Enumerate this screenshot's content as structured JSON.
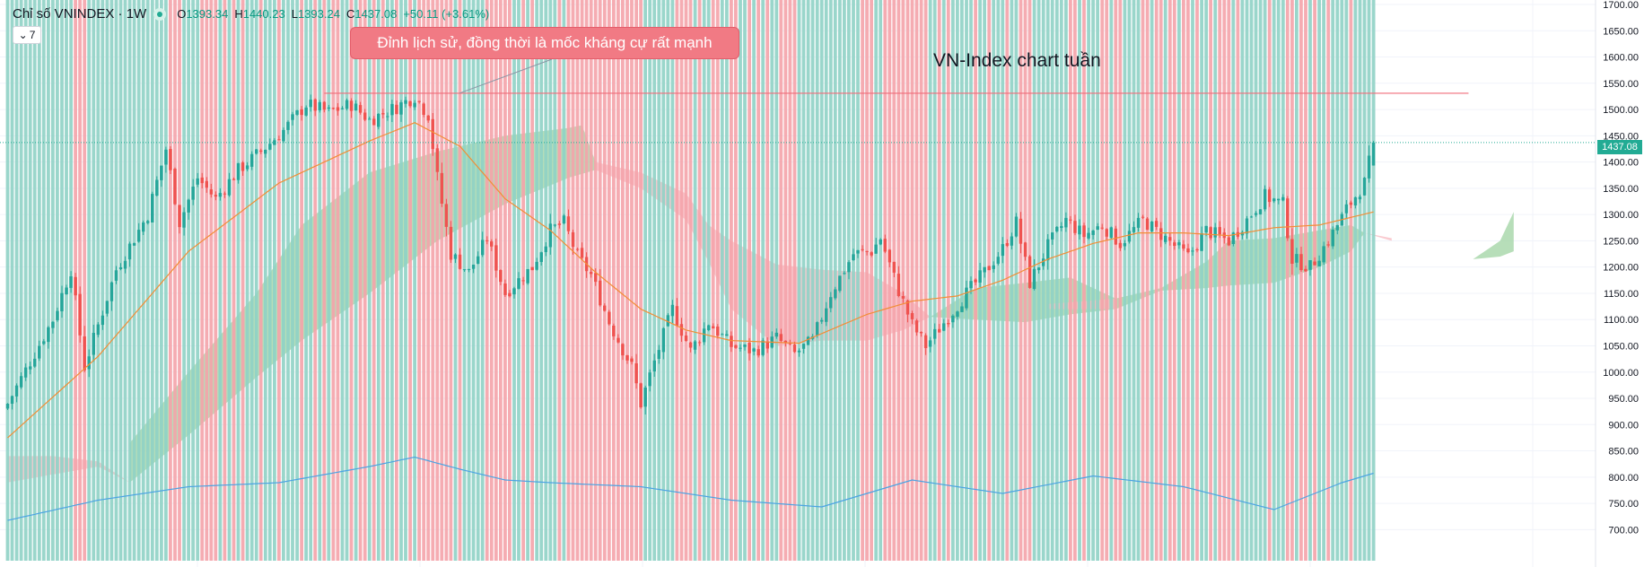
{
  "legend": {
    "symbol": "Chỉ số VNINDEX · 1W",
    "open_key": "O",
    "open": "1393.34",
    "high_key": "H",
    "high": "1440.23",
    "low_key": "L",
    "low": "1393.24",
    "close_key": "C",
    "close": "1437.08",
    "change": "+50.11 (+3.61%)"
  },
  "indicator_toggle": {
    "icon": "chevron-down-icon",
    "count": "7"
  },
  "annotation": {
    "callout_text": "Đỉnh lịch sử, đồng thời là mốc kháng cự rất mạnh",
    "title_text": "VN-Index chart tuần",
    "resistance_level": 1531
  },
  "last_price_tag": "1437.08",
  "colors": {
    "up": "#26a69a",
    "down": "#ef5350",
    "up_volume": "#8fd1c5",
    "down_volume": "#f4a3aa",
    "ma": "#f28d35",
    "volume_ma": "#4ba3e3",
    "cloud_bull": "#a5d6a7",
    "cloud_bear": "#f9bec4",
    "resistance": "#f06c7a",
    "last_price_line": "#22ab94",
    "callout": "#f17a84"
  },
  "chart_data": {
    "type": "candlestick",
    "timeframe": "1W",
    "y_axis": {
      "min": 675,
      "max": 1700,
      "ticks": [
        {
          "value": 1700,
          "label": "1700.00"
        },
        {
          "value": 1650,
          "label": "1650.00"
        },
        {
          "value": 1600,
          "label": "1600.00"
        },
        {
          "value": 1550,
          "label": "1550.00"
        },
        {
          "value": 1500,
          "label": "1500.00"
        },
        {
          "value": 1450,
          "label": "1450.00"
        },
        {
          "value": 1400,
          "label": "1400.00"
        },
        {
          "value": 1350,
          "label": "1350.00"
        },
        {
          "value": 1300,
          "label": "1300.00"
        },
        {
          "value": 1250,
          "label": "1250.00"
        },
        {
          "value": 1200,
          "label": "1200.00"
        },
        {
          "value": 1150,
          "label": "1150.00"
        },
        {
          "value": 1100,
          "label": "1100.00"
        },
        {
          "value": 1050,
          "label": "1050.00"
        },
        {
          "value": 1000,
          "label": "1000.00"
        },
        {
          "value": 950,
          "label": "950.00"
        },
        {
          "value": 900,
          "label": "900.00"
        },
        {
          "value": 850,
          "label": "850.00"
        },
        {
          "value": 800,
          "label": "800.00"
        },
        {
          "value": 750,
          "label": "750.00"
        },
        {
          "value": 700,
          "label": "700.00"
        }
      ]
    },
    "price_path": [
      [
        0,
        940
      ],
      [
        10,
        1100
      ],
      [
        14,
        1195
      ],
      [
        17,
        1010
      ],
      [
        24,
        1195
      ],
      [
        31,
        1300
      ],
      [
        35,
        1425
      ],
      [
        38,
        1285
      ],
      [
        42,
        1370
      ],
      [
        46,
        1330
      ],
      [
        51,
        1385
      ],
      [
        56,
        1420
      ],
      [
        61,
        1460
      ],
      [
        66,
        1510
      ],
      [
        71,
        1495
      ],
      [
        76,
        1510
      ],
      [
        80,
        1480
      ],
      [
        86,
        1505
      ],
      [
        90,
        1525
      ],
      [
        93,
        1490
      ],
      [
        95,
        1370
      ],
      [
        98,
        1225
      ],
      [
        102,
        1190
      ],
      [
        106,
        1255
      ],
      [
        110,
        1150
      ],
      [
        116,
        1200
      ],
      [
        120,
        1270
      ],
      [
        123,
        1285
      ],
      [
        126,
        1220
      ],
      [
        129,
        1185
      ],
      [
        133,
        1095
      ],
      [
        138,
        1010
      ],
      [
        140,
        940
      ],
      [
        143,
        1020
      ],
      [
        147,
        1120
      ],
      [
        151,
        1040
      ],
      [
        155,
        1095
      ],
      [
        160,
        1050
      ],
      [
        165,
        1040
      ],
      [
        170,
        1065
      ],
      [
        174,
        1035
      ],
      [
        178,
        1060
      ],
      [
        182,
        1150
      ],
      [
        187,
        1225
      ],
      [
        191,
        1230
      ],
      [
        193,
        1255
      ],
      [
        197,
        1155
      ],
      [
        200,
        1090
      ],
      [
        203,
        1050
      ],
      [
        208,
        1105
      ],
      [
        212,
        1150
      ],
      [
        216,
        1190
      ],
      [
        220,
        1235
      ],
      [
        223,
        1285
      ],
      [
        226,
        1170
      ],
      [
        230,
        1240
      ],
      [
        234,
        1290
      ],
      [
        238,
        1260
      ],
      [
        242,
        1280
      ],
      [
        246,
        1245
      ],
      [
        251,
        1290
      ],
      [
        256,
        1255
      ],
      [
        261,
        1220
      ],
      [
        265,
        1270
      ],
      [
        270,
        1250
      ],
      [
        274,
        1290
      ],
      [
        278,
        1335
      ],
      [
        282,
        1320
      ],
      [
        284,
        1215
      ],
      [
        288,
        1200
      ],
      [
        292,
        1250
      ],
      [
        296,
        1310
      ],
      [
        300,
        1360
      ],
      [
        302,
        1437.08
      ]
    ],
    "close_last": 1437.08,
    "ma_path": [
      [
        0,
        875
      ],
      [
        20,
        1030
      ],
      [
        40,
        1230
      ],
      [
        60,
        1360
      ],
      [
        80,
        1440
      ],
      [
        90,
        1475
      ],
      [
        100,
        1430
      ],
      [
        110,
        1330
      ],
      [
        120,
        1270
      ],
      [
        130,
        1190
      ],
      [
        140,
        1120
      ],
      [
        150,
        1080
      ],
      [
        160,
        1060
      ],
      [
        175,
        1055
      ],
      [
        190,
        1110
      ],
      [
        200,
        1135
      ],
      [
        210,
        1145
      ],
      [
        220,
        1175
      ],
      [
        230,
        1215
      ],
      [
        240,
        1245
      ],
      [
        250,
        1265
      ],
      [
        260,
        1265
      ],
      [
        270,
        1260
      ],
      [
        280,
        1275
      ],
      [
        290,
        1280
      ],
      [
        302,
        1305
      ]
    ],
    "cloud": {
      "bull_segments": [
        {
          "upper": [
            [
              27,
              865
            ],
            [
              40,
              1000
            ],
            [
              55,
              1150
            ],
            [
              65,
              1280
            ],
            [
              80,
              1380
            ],
            [
              95,
              1420
            ],
            [
              110,
              1450
            ],
            [
              124,
              1465
            ],
            [
              127,
              1470
            ],
            [
              130,
              1400
            ]
          ],
          "lower": [
            [
              27,
              790
            ],
            [
              40,
              880
            ],
            [
              55,
              990
            ],
            [
              65,
              1060
            ],
            [
              80,
              1150
            ],
            [
              95,
              1250
            ],
            [
              110,
              1320
            ],
            [
              124,
              1370
            ],
            [
              130,
              1385
            ]
          ]
        },
        {
          "upper": [
            [
              204,
              1105
            ],
            [
              214,
              1160
            ],
            [
              225,
              1170
            ],
            [
              235,
              1180
            ],
            [
              245,
              1140
            ],
            [
              255,
              1160
            ],
            [
              265,
              1210
            ],
            [
              270,
              1250
            ],
            [
              280,
              1255
            ],
            [
              290,
              1270
            ],
            [
              297,
              1280
            ],
            [
              300,
              1265
            ]
          ],
          "lower": [
            [
              204,
              1105
            ],
            [
              214,
              1100
            ],
            [
              225,
              1095
            ],
            [
              235,
              1110
            ],
            [
              245,
              1120
            ],
            [
              255,
              1155
            ],
            [
              265,
              1160
            ],
            [
              270,
              1165
            ],
            [
              280,
              1170
            ],
            [
              290,
              1200
            ],
            [
              297,
              1230
            ],
            [
              300,
              1265
            ]
          ]
        },
        {
          "upper": [
            [
              324,
              1215
            ],
            [
              330,
              1250
            ],
            [
              333,
              1305
            ]
          ],
          "lower": [
            [
              324,
              1215
            ],
            [
              330,
              1220
            ],
            [
              333,
              1230
            ]
          ]
        }
      ],
      "bear_segments": [
        {
          "upper": [
            [
              0,
              840
            ],
            [
              10,
              840
            ],
            [
              20,
              830
            ],
            [
              27,
              790
            ]
          ],
          "lower": [
            [
              0,
              790
            ],
            [
              10,
              805
            ],
            [
              20,
              820
            ],
            [
              27,
              790
            ]
          ]
        },
        {
          "upper": [
            [
              130,
              1400
            ],
            [
              140,
              1380
            ],
            [
              150,
              1340
            ],
            [
              155,
              1280
            ],
            [
              160,
              1250
            ],
            [
              170,
              1205
            ],
            [
              180,
              1195
            ],
            [
              190,
              1190
            ],
            [
              198,
              1150
            ],
            [
              204,
              1105
            ]
          ],
          "lower": [
            [
              130,
              1385
            ],
            [
              140,
              1350
            ],
            [
              150,
              1290
            ],
            [
              155,
              1210
            ],
            [
              160,
              1120
            ],
            [
              170,
              1050
            ],
            [
              180,
              1060
            ],
            [
              190,
              1060
            ],
            [
              198,
              1080
            ],
            [
              204,
              1105
            ]
          ]
        },
        {
          "upper": [
            [
              230,
              1130
            ],
            [
              238,
              1135
            ],
            [
              245,
              1140
            ]
          ],
          "lower": [
            [
              230,
              1120
            ],
            [
              238,
              1120
            ],
            [
              245,
              1120
            ]
          ]
        },
        {
          "upper": [
            [
              300,
              1265
            ],
            [
              306,
              1255
            ]
          ],
          "lower": [
            [
              300,
              1265
            ],
            [
              306,
              1250
            ]
          ]
        }
      ]
    },
    "volume": {
      "bars": 302,
      "avg_path": [
        [
          0,
          0.3
        ],
        [
          20,
          0.45
        ],
        [
          40,
          0.55
        ],
        [
          60,
          0.58
        ],
        [
          80,
          0.7
        ],
        [
          90,
          0.77
        ],
        [
          100,
          0.68
        ],
        [
          110,
          0.6
        ],
        [
          120,
          0.58
        ],
        [
          140,
          0.55
        ],
        [
          160,
          0.45
        ],
        [
          180,
          0.4
        ],
        [
          200,
          0.6
        ],
        [
          220,
          0.5
        ],
        [
          240,
          0.63
        ],
        [
          260,
          0.55
        ],
        [
          280,
          0.38
        ],
        [
          295,
          0.58
        ],
        [
          302,
          0.65
        ]
      ]
    }
  }
}
